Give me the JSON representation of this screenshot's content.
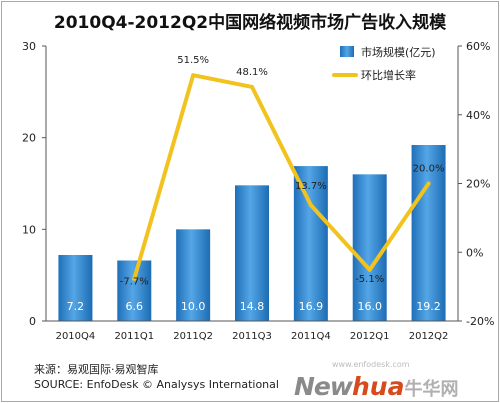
{
  "chart_data": {
    "type": "bar+line",
    "title": "2010Q4-2012Q2中国网络视频市场广告收入规模",
    "categories": [
      "2010Q4",
      "2011Q1",
      "2011Q2",
      "2011Q3",
      "2011Q4",
      "2012Q1",
      "2012Q2"
    ],
    "series": [
      {
        "name": "市场规模(亿元)",
        "type": "bar",
        "axis": "left",
        "values": [
          7.2,
          6.6,
          10.0,
          14.8,
          16.9,
          16.0,
          19.2
        ],
        "labels": [
          "7.2",
          "6.6",
          "10.0",
          "14.8",
          "16.9",
          "16.0",
          "19.2"
        ],
        "color": "#2f87cf"
      },
      {
        "name": "环比增长率",
        "type": "line",
        "axis": "right",
        "values": [
          null,
          -7.7,
          51.5,
          48.1,
          13.7,
          -5.1,
          20.0
        ],
        "labels": [
          "",
          "-7.7%",
          "51.5%",
          "48.1%",
          "13.7%",
          "-5.1%",
          "20.0%"
        ],
        "color": "#f2c21e"
      }
    ],
    "y_left": {
      "range": [
        0,
        30
      ],
      "ticks": [
        "0",
        "10",
        "20",
        "30"
      ]
    },
    "y_right": {
      "range": [
        -20,
        60
      ],
      "ticks": [
        "-20%",
        "0%",
        "20%",
        "40%",
        "60%"
      ]
    },
    "legend_position": "top-right",
    "grid": false
  },
  "footer": {
    "line1": "来源：易观国际·易观智库",
    "line2": "SOURCE: EnfoDesk © Analysys International"
  },
  "watermark": {
    "url": "www.enfodesk.com",
    "brand_a": "New",
    "brand_b": "hua",
    "brand_c": "牛华网"
  }
}
